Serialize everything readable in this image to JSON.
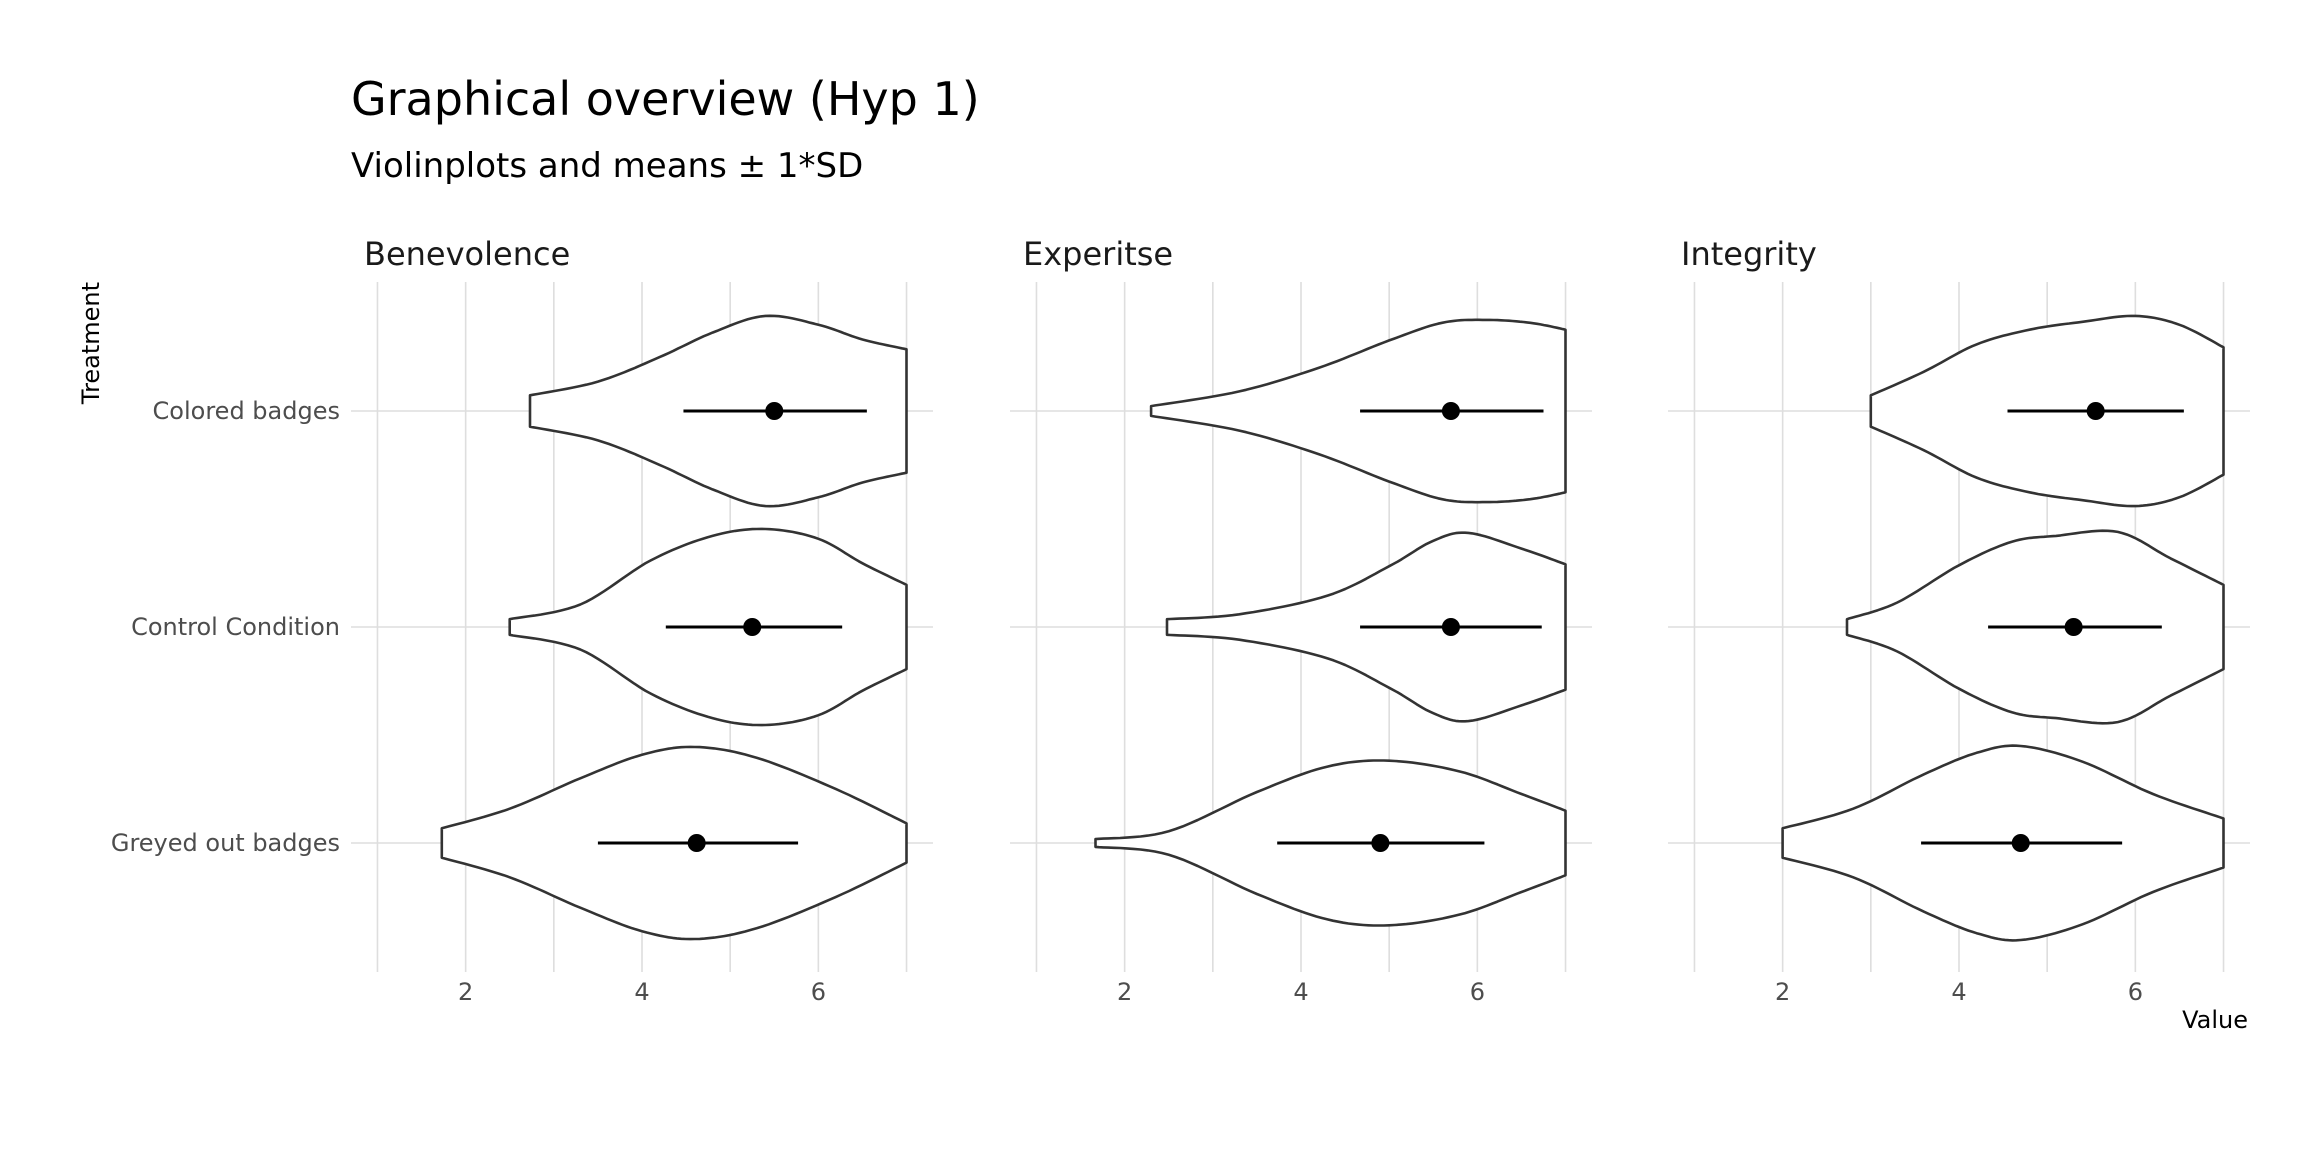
{
  "chart_data": {
    "type": "violin",
    "title": "Graphical overview (Hyp 1)",
    "subtitle": "Violinplots and means ± 1*SD",
    "xlabel": "Value",
    "ylabel": "Treatment",
    "xlim": [
      0.7,
      7.3
    ],
    "x_ticks": [
      2,
      4,
      6
    ],
    "categories": [
      "Colored badges",
      "Control Condition",
      "Greyed out badges"
    ],
    "grid": "on",
    "facets": [
      {
        "name": "Benevolence",
        "groups": [
          {
            "category": "Colored badges",
            "mean": 5.5,
            "sd_low": 4.47,
            "sd_high": 6.55,
            "min": 2.73,
            "max": 7.0,
            "density": [
              [
                2.73,
                0.16
              ],
              [
                3.5,
                0.3
              ],
              [
                4.2,
                0.55
              ],
              [
                4.8,
                0.8
              ],
              [
                5.4,
                0.97
              ],
              [
                6.0,
                0.88
              ],
              [
                6.5,
                0.73
              ],
              [
                7.0,
                0.63
              ]
            ]
          },
          {
            "category": "Control Condition",
            "mean": 5.25,
            "sd_low": 4.27,
            "sd_high": 6.27,
            "min": 2.5,
            "max": 7.0,
            "density": [
              [
                2.5,
                0.08
              ],
              [
                3.3,
                0.23
              ],
              [
                4.1,
                0.68
              ],
              [
                4.8,
                0.93
              ],
              [
                5.4,
                1.0
              ],
              [
                6.0,
                0.9
              ],
              [
                6.5,
                0.65
              ],
              [
                7.0,
                0.43
              ]
            ]
          },
          {
            "category": "Greyed out badges",
            "mean": 4.62,
            "sd_low": 3.5,
            "sd_high": 5.77,
            "min": 1.73,
            "max": 7.0,
            "density": [
              [
                1.73,
                0.15
              ],
              [
                2.5,
                0.35
              ],
              [
                3.3,
                0.66
              ],
              [
                4.0,
                0.9
              ],
              [
                4.6,
                0.98
              ],
              [
                5.3,
                0.87
              ],
              [
                6.2,
                0.55
              ],
              [
                7.0,
                0.2
              ]
            ]
          }
        ]
      },
      {
        "name": "Experitse",
        "groups": [
          {
            "category": "Colored badges",
            "mean": 5.7,
            "sd_low": 4.67,
            "sd_high": 6.75,
            "min": 2.3,
            "max": 7.0,
            "density": [
              [
                2.3,
                0.05
              ],
              [
                3.3,
                0.2
              ],
              [
                4.2,
                0.44
              ],
              [
                5.0,
                0.72
              ],
              [
                5.6,
                0.9
              ],
              [
                6.1,
                0.93
              ],
              [
                6.6,
                0.9
              ],
              [
                7.0,
                0.83
              ]
            ]
          },
          {
            "category": "Control Condition",
            "mean": 5.7,
            "sd_low": 4.67,
            "sd_high": 6.73,
            "min": 2.48,
            "max": 7.0,
            "density": [
              [
                2.48,
                0.08
              ],
              [
                3.3,
                0.13
              ],
              [
                4.3,
                0.32
              ],
              [
                5.0,
                0.62
              ],
              [
                5.5,
                0.88
              ],
              [
                5.9,
                0.96
              ],
              [
                6.5,
                0.8
              ],
              [
                7.0,
                0.64
              ]
            ]
          },
          {
            "category": "Greyed out badges",
            "mean": 4.9,
            "sd_low": 3.73,
            "sd_high": 6.08,
            "min": 1.67,
            "max": 7.0,
            "density": [
              [
                1.67,
                0.04
              ],
              [
                2.5,
                0.12
              ],
              [
                3.5,
                0.52
              ],
              [
                4.3,
                0.78
              ],
              [
                5.0,
                0.84
              ],
              [
                5.8,
                0.73
              ],
              [
                6.5,
                0.5
              ],
              [
                7.0,
                0.33
              ]
            ]
          }
        ]
      },
      {
        "name": "Integrity",
        "groups": [
          {
            "category": "Colored badges",
            "mean": 5.55,
            "sd_low": 4.55,
            "sd_high": 6.55,
            "min": 3.0,
            "max": 7.0,
            "density": [
              [
                3.0,
                0.16
              ],
              [
                3.6,
                0.4
              ],
              [
                4.2,
                0.68
              ],
              [
                4.8,
                0.83
              ],
              [
                5.4,
                0.91
              ],
              [
                6.0,
                0.97
              ],
              [
                6.5,
                0.88
              ],
              [
                7.0,
                0.65
              ]
            ]
          },
          {
            "category": "Control Condition",
            "mean": 5.3,
            "sd_low": 4.33,
            "sd_high": 6.3,
            "min": 2.73,
            "max": 7.0,
            "density": [
              [
                2.73,
                0.08
              ],
              [
                3.3,
                0.25
              ],
              [
                4.0,
                0.63
              ],
              [
                4.6,
                0.87
              ],
              [
                5.1,
                0.93
              ],
              [
                5.8,
                0.97
              ],
              [
                6.4,
                0.7
              ],
              [
                7.0,
                0.43
              ]
            ]
          },
          {
            "category": "Greyed out badges",
            "mean": 4.7,
            "sd_low": 3.57,
            "sd_high": 5.85,
            "min": 2.0,
            "max": 7.0,
            "density": [
              [
                2.0,
                0.15
              ],
              [
                2.8,
                0.35
              ],
              [
                3.6,
                0.7
              ],
              [
                4.2,
                0.92
              ],
              [
                4.7,
                0.99
              ],
              [
                5.4,
                0.83
              ],
              [
                6.2,
                0.5
              ],
              [
                7.0,
                0.25
              ]
            ]
          }
        ]
      }
    ]
  }
}
